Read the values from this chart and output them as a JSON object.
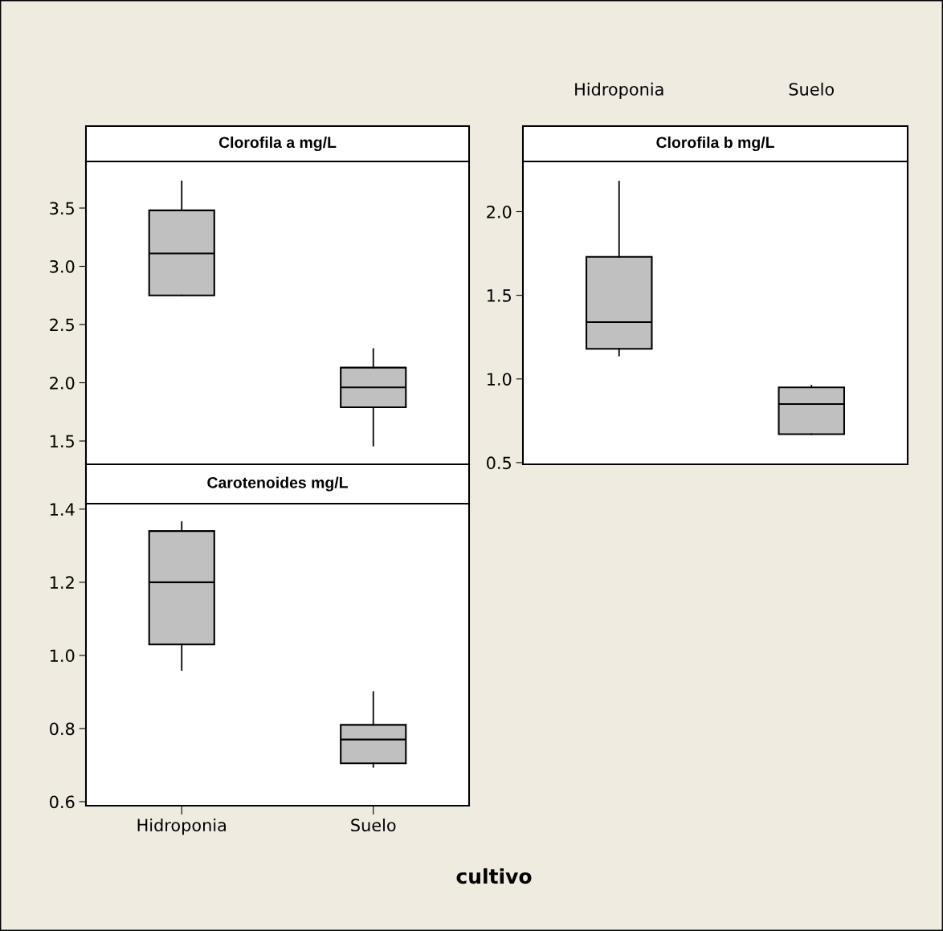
{
  "chart_data": [
    {
      "type": "box",
      "title": "Clorofila a mg/L",
      "categories": [
        null,
        null
      ],
      "ylim": [
        1.3,
        3.9
      ],
      "yticks": [
        {
          "value": 1.5,
          "label": "1.5"
        },
        {
          "value": 2.0,
          "label": "2.0"
        },
        {
          "value": 2.5,
          "label": "2.5"
        },
        {
          "value": 3.0,
          "label": "3.0"
        },
        {
          "value": 3.5,
          "label": "3.5"
        }
      ],
      "tick_labels": "y",
      "grid": false,
      "legend": false,
      "series": [
        {
          "color": "#c0c0c0",
          "boxes": [
            {
              "low": 2.75,
              "q1": 2.75,
              "median": 3.11,
              "q3": 3.48,
              "high": 3.73
            },
            {
              "low": 1.46,
              "q1": 1.79,
              "median": 1.96,
              "q3": 2.13,
              "high": 2.29
            }
          ]
        }
      ]
    },
    {
      "type": "box",
      "title": "Clorofila b mg/L",
      "categories": [
        "Hidroponia",
        "Suelo"
      ],
      "ylim": [
        0.49,
        2.3
      ],
      "yticks": [
        0.5,
        {
          "value": 1.0,
          "label": "1.0"
        },
        1.5,
        {
          "value": 2.0,
          "label": "2.0"
        }
      ],
      "grid": false,
      "legend": false,
      "series": [
        {
          "color": "#c0c0c0",
          "boxes": [
            {
              "low": 1.14,
              "q1": 1.18,
              "median": 1.34,
              "q3": 1.73,
              "high": 2.18
            },
            {
              "low": 0.67,
              "q1": 0.67,
              "median": 0.85,
              "q3": 0.95,
              "high": 0.96
            }
          ]
        }
      ]
    },
    {
      "type": "box",
      "title": "Carotenoides mg/L",
      "xlabel": "cultivo",
      "categories": [
        "Hidroponia",
        "Suelo"
      ],
      "ylim": [
        0.589,
        1.415
      ],
      "yticks": [
        0.6,
        0.8,
        {
          "value": 1.0,
          "label": "1.0"
        },
        1.2,
        1.4
      ],
      "grid": false,
      "legend": false,
      "series": [
        {
          "color": "#c0c0c0",
          "boxes": [
            {
              "low": 0.96,
              "q1": 1.03,
              "median": 1.2,
              "q3": 1.34,
              "high": 1.365
            },
            {
              "low": 0.695,
              "q1": 0.705,
              "median": 0.77,
              "q3": 0.81,
              "high": 0.9
            }
          ]
        }
      ]
    }
  ]
}
